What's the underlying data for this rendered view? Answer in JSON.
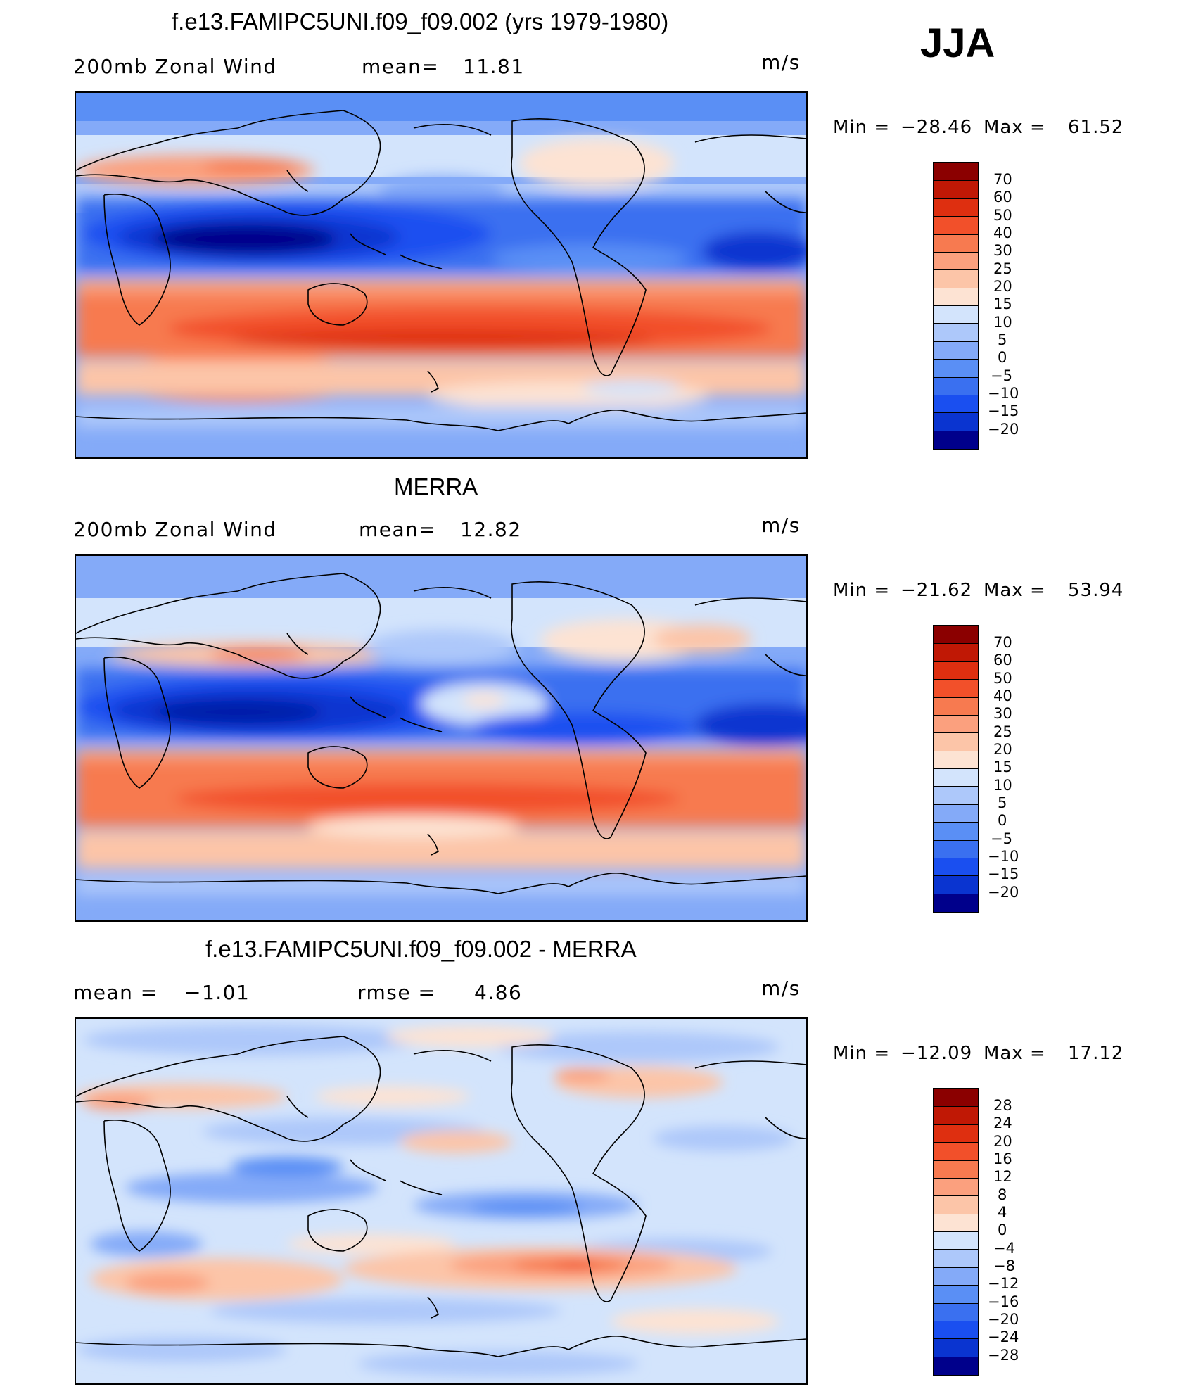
{
  "season": "JJA",
  "palette": [
    "#00008b",
    "#001aa8",
    "#0a34d0",
    "#1a4ff0",
    "#3a70f0",
    "#5a8ff5",
    "#84aaf8",
    "#adc8fa",
    "#d3e4fc",
    "#fde3d3",
    "#fcc5a8",
    "#fba07e",
    "#f77a50",
    "#f2502a",
    "#de2f10",
    "#c01805",
    "#8b0000"
  ],
  "panels": [
    {
      "id": "model",
      "title": "f.e13.FAMIPC5UNI.f09_f09.002 (yrs 1979-1980)",
      "left_label": "200mb  Zonal  Wind",
      "stat_label": "mean=",
      "stat_value": "11.81",
      "stat2_label": "",
      "stat2_value": "",
      "units": "m/s",
      "min_label": "Min  =",
      "min_value": "−28.46",
      "max_label": "Max  =",
      "max_value": "61.52",
      "levels": [
        "70",
        "60",
        "50",
        "40",
        "30",
        "25",
        "20",
        "15",
        "10",
        "5",
        "0",
        "−5",
        "−10",
        "−15",
        "−20"
      ]
    },
    {
      "id": "obs",
      "title": "MERRA",
      "left_label": "200mb  Zonal  Wind",
      "stat_label": "mean=",
      "stat_value": "12.82",
      "stat2_label": "",
      "stat2_value": "",
      "units": "m/s",
      "min_label": "Min  =",
      "min_value": "−21.62",
      "max_label": "Max  =",
      "max_value": "53.94",
      "levels": [
        "70",
        "60",
        "50",
        "40",
        "30",
        "25",
        "20",
        "15",
        "10",
        "5",
        "0",
        "−5",
        "−10",
        "−15",
        "−20"
      ]
    },
    {
      "id": "diff",
      "title": "f.e13.FAMIPC5UNI.f09_f09.002 - MERRA",
      "left_label": "mean  =",
      "stat_label": "",
      "stat_value": "−1.01",
      "stat2_label": "rmse  =",
      "stat2_value": "4.86",
      "units": "m/s",
      "min_label": "Min  =",
      "min_value": "−12.09",
      "max_label": "Max  =",
      "max_value": "17.12",
      "levels": [
        "28",
        "24",
        "20",
        "16",
        "12",
        "8",
        "4",
        "0",
        "−4",
        "−8",
        "−12",
        "−16",
        "−20",
        "−24",
        "−28"
      ]
    }
  ]
}
